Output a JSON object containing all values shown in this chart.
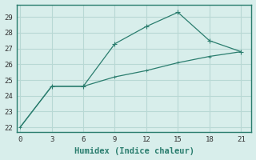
{
  "xlabel": "Humidex (Indice chaleur)",
  "line1_x": [
    3,
    6,
    9,
    12,
    15,
    18,
    21
  ],
  "line1_y": [
    24.6,
    24.6,
    27.3,
    28.4,
    29.3,
    27.5,
    26.8
  ],
  "line2_x": [
    0,
    3,
    6,
    9,
    12,
    15,
    18,
    21
  ],
  "line2_y": [
    22.0,
    24.6,
    24.6,
    25.2,
    25.6,
    26.1,
    26.5,
    26.8
  ],
  "line_color": "#2a7d6e",
  "bg_color": "#d8eeeb",
  "grid_color": "#b8d8d4",
  "xlim": [
    -0.3,
    22.0
  ],
  "ylim": [
    21.7,
    29.8
  ],
  "xticks": [
    0,
    3,
    6,
    9,
    12,
    15,
    18,
    21
  ],
  "yticks": [
    22,
    23,
    24,
    25,
    26,
    27,
    28,
    29
  ],
  "tick_fontsize": 6.5,
  "xlabel_fontsize": 7.5
}
